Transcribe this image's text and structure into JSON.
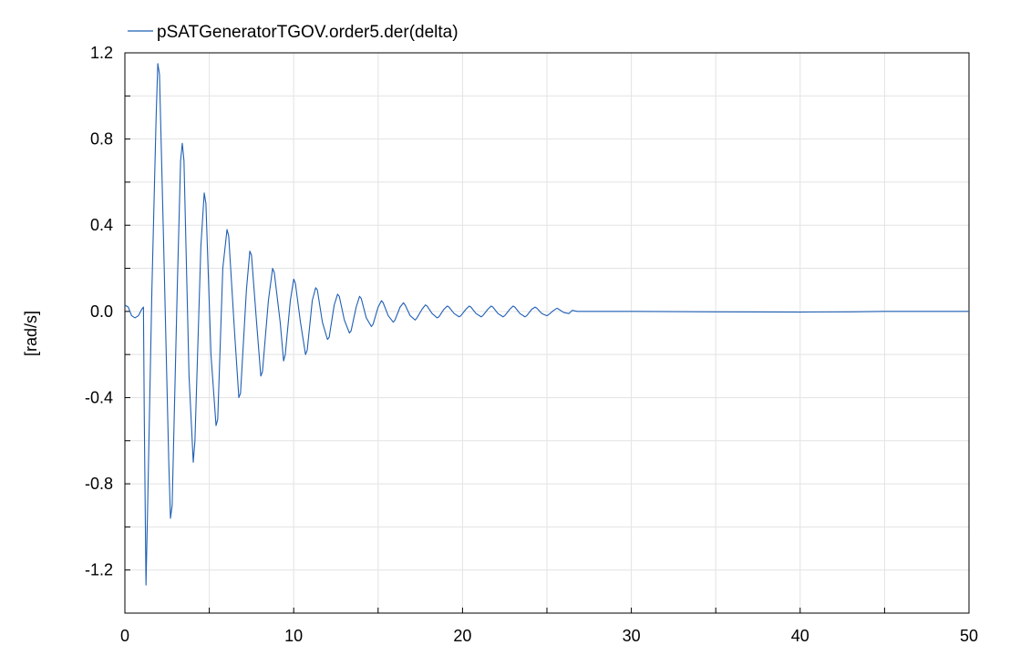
{
  "chart_data": {
    "type": "line",
    "title": "",
    "xlabel": "",
    "ylabel": "[rad/s]",
    "xlim": [
      0,
      50
    ],
    "ylim": [
      -1.4,
      1.2
    ],
    "x_ticks": [
      0,
      10,
      20,
      30,
      40,
      50
    ],
    "x_tick_labels": [
      "0",
      "10",
      "20",
      "30",
      "40",
      "50"
    ],
    "y_ticks": [
      1.2,
      0.8,
      0.4,
      0.0,
      -0.4,
      -0.8,
      -1.2
    ],
    "y_tick_labels": [
      "1.2",
      "0.8",
      "0.4",
      "0.0",
      "-0.4",
      "-0.8",
      "-1.2"
    ],
    "grid": true,
    "legend_position": "top-left",
    "series": [
      {
        "name": "pSATGeneratorTGOV.order5.der(delta)",
        "color": "#1f5fb4",
        "points": [
          [
            0.0,
            0.03
          ],
          [
            0.2,
            0.02
          ],
          [
            0.4,
            -0.02
          ],
          [
            0.6,
            -0.03
          ],
          [
            0.8,
            -0.02
          ],
          [
            1.0,
            0.01
          ],
          [
            1.1,
            0.02
          ],
          [
            1.15,
            -0.5
          ],
          [
            1.25,
            -1.27
          ],
          [
            1.35,
            -0.9
          ],
          [
            1.6,
            0.1
          ],
          [
            1.85,
            0.9
          ],
          [
            1.95,
            1.15
          ],
          [
            2.05,
            1.1
          ],
          [
            2.3,
            0.3
          ],
          [
            2.6,
            -0.7
          ],
          [
            2.7,
            -0.96
          ],
          [
            2.8,
            -0.9
          ],
          [
            3.1,
            0.1
          ],
          [
            3.3,
            0.7
          ],
          [
            3.4,
            0.78
          ],
          [
            3.5,
            0.7
          ],
          [
            3.8,
            -0.3
          ],
          [
            4.05,
            -0.7
          ],
          [
            4.15,
            -0.6
          ],
          [
            4.5,
            0.3
          ],
          [
            4.7,
            0.55
          ],
          [
            4.8,
            0.5
          ],
          [
            5.1,
            -0.2
          ],
          [
            5.4,
            -0.53
          ],
          [
            5.5,
            -0.5
          ],
          [
            5.8,
            0.2
          ],
          [
            6.05,
            0.38
          ],
          [
            6.15,
            0.35
          ],
          [
            6.5,
            -0.1
          ],
          [
            6.75,
            -0.4
          ],
          [
            6.85,
            -0.38
          ],
          [
            7.2,
            0.1
          ],
          [
            7.4,
            0.28
          ],
          [
            7.5,
            0.26
          ],
          [
            7.8,
            -0.05
          ],
          [
            8.05,
            -0.3
          ],
          [
            8.15,
            -0.28
          ],
          [
            8.5,
            0.05
          ],
          [
            8.75,
            0.2
          ],
          [
            8.85,
            0.18
          ],
          [
            9.2,
            -0.05
          ],
          [
            9.4,
            -0.23
          ],
          [
            9.5,
            -0.2
          ],
          [
            9.8,
            0.05
          ],
          [
            10.0,
            0.15
          ],
          [
            10.1,
            0.13
          ],
          [
            10.4,
            -0.05
          ],
          [
            10.7,
            -0.2
          ],
          [
            10.8,
            -0.18
          ],
          [
            11.1,
            0.05
          ],
          [
            11.3,
            0.11
          ],
          [
            11.4,
            0.1
          ],
          [
            11.7,
            -0.05
          ],
          [
            12.0,
            -0.13
          ],
          [
            12.1,
            -0.12
          ],
          [
            12.4,
            0.03
          ],
          [
            12.6,
            0.08
          ],
          [
            12.7,
            0.07
          ],
          [
            13.0,
            -0.04
          ],
          [
            13.3,
            -0.1
          ],
          [
            13.4,
            -0.09
          ],
          [
            13.7,
            0.02
          ],
          [
            13.9,
            0.07
          ],
          [
            14.0,
            0.06
          ],
          [
            14.3,
            -0.03
          ],
          [
            14.6,
            -0.07
          ],
          [
            14.7,
            -0.06
          ],
          [
            15.0,
            0.02
          ],
          [
            15.2,
            0.05
          ],
          [
            15.3,
            0.04
          ],
          [
            15.6,
            -0.02
          ],
          [
            15.9,
            -0.05
          ],
          [
            16.0,
            -0.04
          ],
          [
            16.3,
            0.02
          ],
          [
            16.5,
            0.04
          ],
          [
            16.6,
            0.03
          ],
          [
            16.9,
            -0.02
          ],
          [
            17.2,
            -0.04
          ],
          [
            17.3,
            -0.03
          ],
          [
            17.6,
            0.01
          ],
          [
            17.8,
            0.03
          ],
          [
            17.9,
            0.025
          ],
          [
            18.2,
            -0.01
          ],
          [
            18.5,
            -0.03
          ],
          [
            18.6,
            -0.025
          ],
          [
            18.9,
            0.01
          ],
          [
            19.1,
            0.025
          ],
          [
            19.2,
            0.02
          ],
          [
            19.5,
            -0.01
          ],
          [
            19.8,
            -0.025
          ],
          [
            19.9,
            -0.02
          ],
          [
            20.2,
            0.01
          ],
          [
            20.4,
            0.025
          ],
          [
            20.5,
            0.02
          ],
          [
            20.8,
            -0.01
          ],
          [
            21.1,
            -0.025
          ],
          [
            21.2,
            -0.02
          ],
          [
            21.5,
            0.01
          ],
          [
            21.7,
            0.025
          ],
          [
            21.8,
            0.02
          ],
          [
            22.1,
            -0.01
          ],
          [
            22.4,
            -0.025
          ],
          [
            22.5,
            -0.02
          ],
          [
            22.8,
            0.01
          ],
          [
            23.0,
            0.025
          ],
          [
            23.1,
            0.02
          ],
          [
            23.4,
            -0.01
          ],
          [
            23.7,
            -0.025
          ],
          [
            23.8,
            -0.02
          ],
          [
            24.1,
            0.01
          ],
          [
            24.3,
            0.02
          ],
          [
            24.4,
            0.015
          ],
          [
            24.7,
            -0.01
          ],
          [
            25.0,
            -0.02
          ],
          [
            25.1,
            -0.015
          ],
          [
            25.4,
            0.005
          ],
          [
            25.6,
            0.015
          ],
          [
            25.7,
            0.01
          ],
          [
            26.0,
            -0.005
          ],
          [
            26.3,
            -0.01
          ],
          [
            26.5,
            0.005
          ],
          [
            26.8,
            0.0
          ],
          [
            30.0,
            0.0
          ],
          [
            35.0,
            -0.002
          ],
          [
            40.0,
            -0.003
          ],
          [
            43.0,
            -0.002
          ],
          [
            45.0,
            0.0
          ],
          [
            50.0,
            0.0
          ]
        ]
      }
    ]
  }
}
